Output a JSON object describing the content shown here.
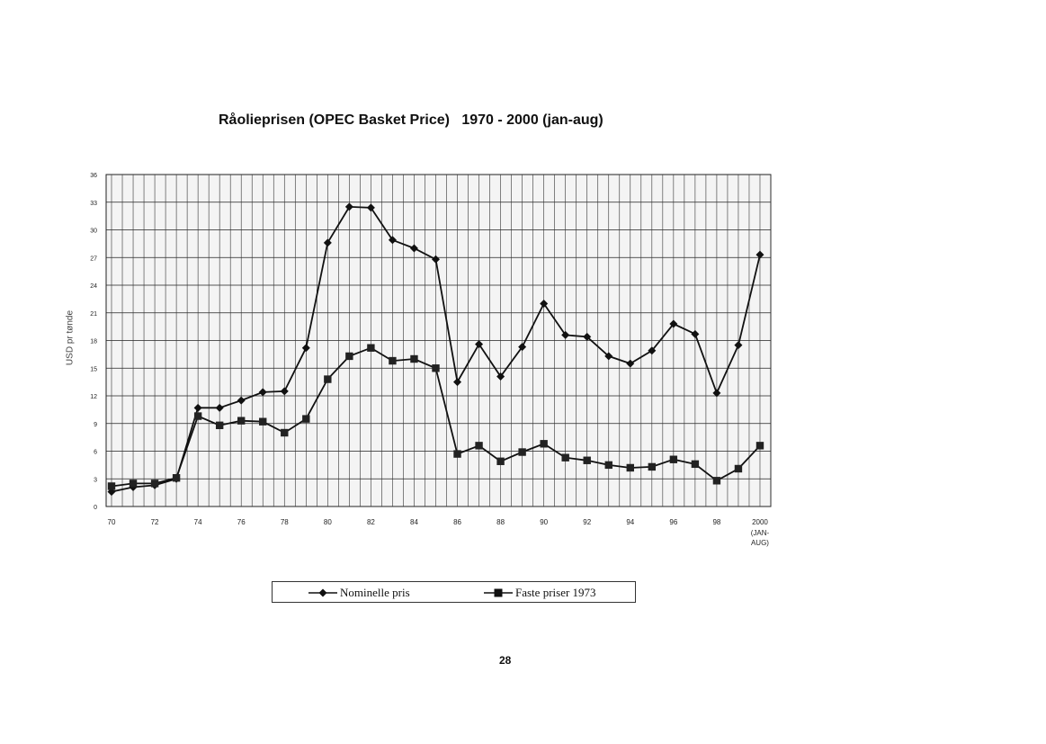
{
  "chart_data": {
    "type": "line",
    "title": "Råolieprisen (OPEC Basket Price)   1970 - 2000 (jan-aug)",
    "ylabel": "USD pr tønde",
    "ylim": [
      0,
      36
    ],
    "yticks": [
      0,
      3,
      6,
      9,
      12,
      15,
      18,
      21,
      24,
      27,
      30,
      33,
      36
    ],
    "xlim": [
      1970,
      2000
    ],
    "xticks": [
      {
        "x": 1970,
        "label": "70"
      },
      {
        "x": 1972,
        "label": "72"
      },
      {
        "x": 1974,
        "label": "74"
      },
      {
        "x": 1976,
        "label": "76"
      },
      {
        "x": 1978,
        "label": "78"
      },
      {
        "x": 1980,
        "label": "80"
      },
      {
        "x": 1982,
        "label": "82"
      },
      {
        "x": 1984,
        "label": "84"
      },
      {
        "x": 1986,
        "label": "86"
      },
      {
        "x": 1988,
        "label": "88"
      },
      {
        "x": 1990,
        "label": "90"
      },
      {
        "x": 1992,
        "label": "92"
      },
      {
        "x": 1994,
        "label": "94"
      },
      {
        "x": 1996,
        "label": "96"
      },
      {
        "x": 1998,
        "label": "98"
      },
      {
        "x": 2000,
        "label": "2000"
      }
    ],
    "x_extra_label": [
      "(JAN-",
      "AUG)"
    ],
    "grid": true,
    "legend_position": "bottom",
    "x": [
      1970,
      1971,
      1972,
      1973,
      1974,
      1975,
      1976,
      1977,
      1978,
      1979,
      1980,
      1981,
      1982,
      1983,
      1984,
      1985,
      1986,
      1987,
      1988,
      1989,
      1990,
      1991,
      1992,
      1993,
      1994,
      1995,
      1996,
      1997,
      1998,
      1999,
      2000
    ],
    "series": [
      {
        "name": "Nominelle pris",
        "marker": "diamond",
        "values": [
          1.6,
          2.1,
          2.3,
          3.0,
          10.7,
          10.7,
          11.5,
          12.4,
          12.5,
          17.2,
          28.6,
          32.5,
          32.4,
          28.9,
          28.0,
          26.8,
          13.5,
          17.6,
          14.1,
          17.3,
          22.0,
          18.6,
          18.4,
          16.3,
          15.5,
          16.9,
          19.8,
          18.7,
          12.3,
          17.5,
          27.3
        ]
      },
      {
        "name": "Faste priser 1973",
        "marker": "square",
        "values": [
          2.2,
          2.5,
          2.5,
          3.1,
          9.8,
          8.8,
          9.3,
          9.2,
          8.0,
          9.5,
          13.8,
          16.3,
          17.2,
          15.8,
          16.0,
          15.0,
          5.7,
          6.6,
          4.9,
          5.9,
          6.8,
          5.3,
          5.0,
          4.5,
          4.2,
          4.3,
          5.1,
          4.6,
          2.8,
          4.1,
          6.6
        ]
      }
    ]
  },
  "page_number": "28"
}
